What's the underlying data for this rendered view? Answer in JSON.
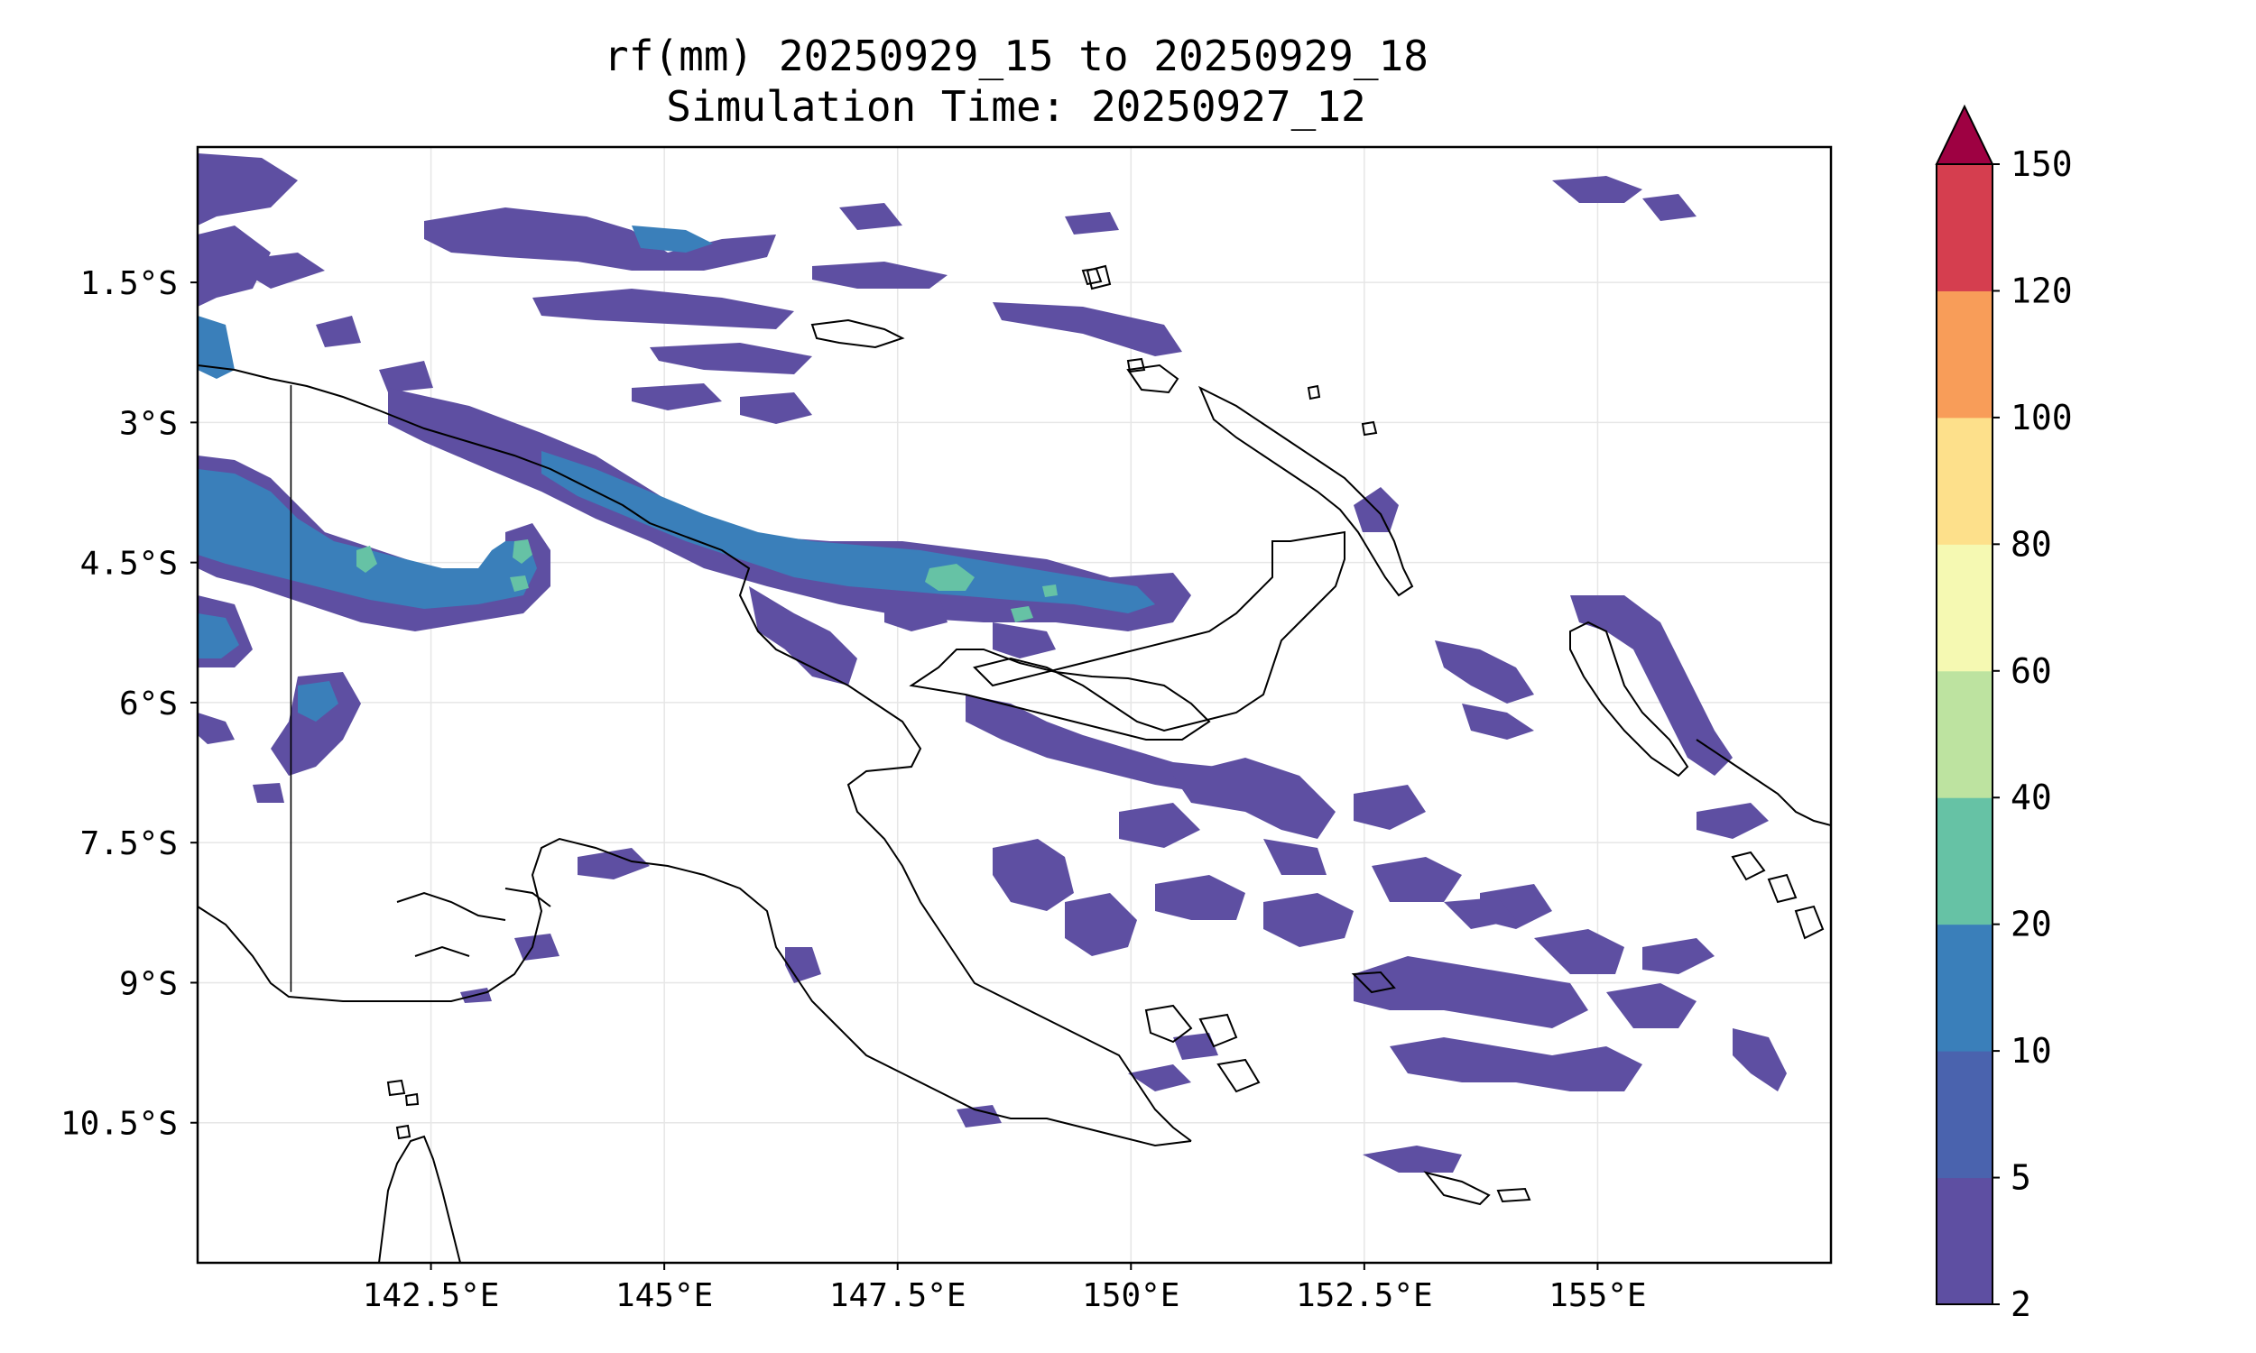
{
  "title": {
    "line1": "rf(mm) 20250929_15 to 20250929_18",
    "line2": "Simulation Time: 20250927_12"
  },
  "map": {
    "region": "Papua New Guinea",
    "lon_range": [
      140.0,
      157.5
    ],
    "lat_range": [
      -12.0,
      -0.05
    ],
    "gridlines": true,
    "x_ticks": [
      {
        "lon": 142.5,
        "label": "142.5°E"
      },
      {
        "lon": 145.0,
        "label": "145°E"
      },
      {
        "lon": 147.5,
        "label": "147.5°E"
      },
      {
        "lon": 150.0,
        "label": "150°E"
      },
      {
        "lon": 152.5,
        "label": "152.5°E"
      },
      {
        "lon": 155.0,
        "label": "155°E"
      }
    ],
    "y_ticks": [
      {
        "lat": -1.5,
        "label": "1.5°S"
      },
      {
        "lat": -3.0,
        "label": "3°S"
      },
      {
        "lat": -4.5,
        "label": "4.5°S"
      },
      {
        "lat": -6.0,
        "label": "6°S"
      },
      {
        "lat": -7.5,
        "label": "7.5°S"
      },
      {
        "lat": -9.0,
        "label": "9°S"
      },
      {
        "lat": -10.5,
        "label": "10.5°S"
      }
    ],
    "border_lon": 141.0
  },
  "colorbar": {
    "extend": "max",
    "extend_color": "#9e0142",
    "levels": [
      {
        "label": "2",
        "color": "#5e4fa2"
      },
      {
        "label": "5",
        "color": "#4a63ae"
      },
      {
        "label": "10",
        "color": "#3a7fba"
      },
      {
        "label": "20",
        "color": "#66c2a5"
      },
      {
        "label": "40",
        "color": "#bde3a0"
      },
      {
        "label": "60",
        "color": "#f5f9b2"
      },
      {
        "label": "80",
        "color": "#fde08b"
      },
      {
        "label": "100",
        "color": "#f89d59"
      },
      {
        "label": "120",
        "color": "#d53e4f"
      },
      {
        "label": "150",
        "color": ""
      }
    ]
  }
}
